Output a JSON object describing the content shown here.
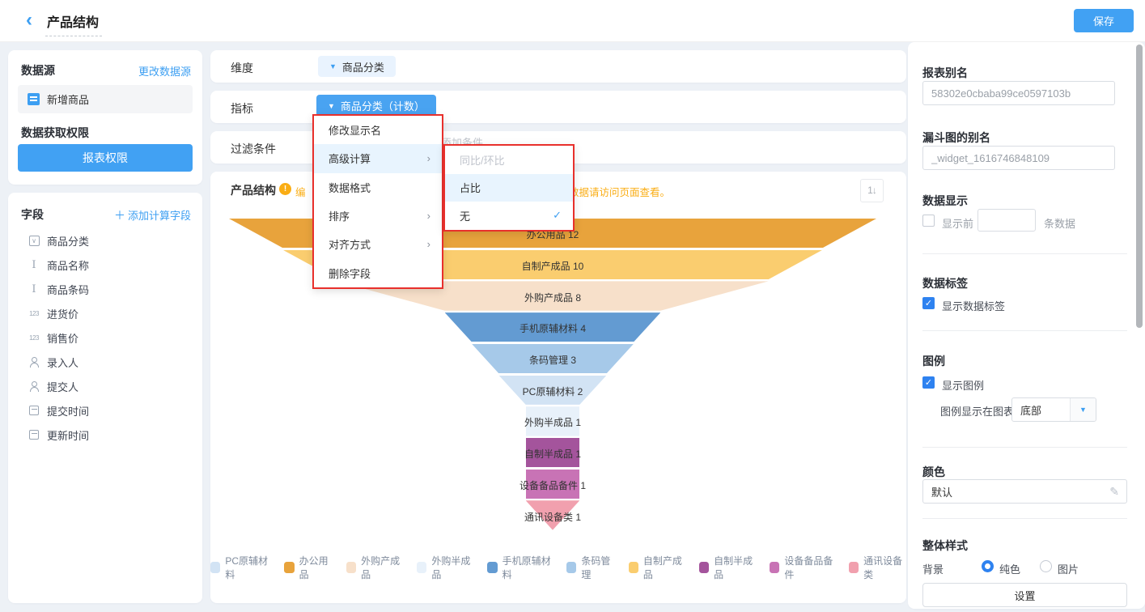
{
  "header": {
    "title": "产品结构",
    "save_label": "保存"
  },
  "left_panel": {
    "datasource": {
      "heading": "数据源",
      "change_link": "更改数据源",
      "item": "新增商品"
    },
    "permission": {
      "heading": "数据获取权限",
      "button": "报表权限"
    },
    "fields": {
      "heading": "字段",
      "add_link": "添加计算字段",
      "items": [
        {
          "icon": "select",
          "label": "商品分类"
        },
        {
          "icon": "text",
          "label": "商品名称"
        },
        {
          "icon": "text",
          "label": "商品条码"
        },
        {
          "icon": "number",
          "label": "进货价"
        },
        {
          "icon": "number",
          "label": "销售价"
        },
        {
          "icon": "person",
          "label": "录入人"
        },
        {
          "icon": "person",
          "label": "提交人"
        },
        {
          "icon": "date",
          "label": "提交时间"
        },
        {
          "icon": "date",
          "label": "更新时间"
        }
      ]
    }
  },
  "config_rows": {
    "dimension": {
      "label": "维度",
      "pill": "商品分类"
    },
    "metric": {
      "label": "指标",
      "pill": "商品分类（计数）"
    },
    "filter": {
      "label": "过滤条件",
      "placeholder_fragment": "添加条件"
    }
  },
  "context_menu": {
    "items": [
      {
        "label": "修改显示名",
        "arrow": false,
        "active": false
      },
      {
        "label": "高级计算",
        "arrow": true,
        "active": true
      },
      {
        "label": "数据格式",
        "arrow": false,
        "active": false
      },
      {
        "label": "排序",
        "arrow": true,
        "active": false
      },
      {
        "label": "对齐方式",
        "arrow": true,
        "active": false
      },
      {
        "label": "删除字段",
        "arrow": false,
        "active": false
      }
    ],
    "submenu": [
      {
        "label": "同比/环比",
        "disabled": true,
        "hover": false,
        "checked": false
      },
      {
        "label": "占比",
        "disabled": false,
        "hover": true,
        "checked": false
      },
      {
        "label": "无",
        "disabled": false,
        "hover": false,
        "checked": true
      }
    ]
  },
  "chart_card": {
    "title": "产品结构",
    "warning_fragment_left": "编",
    "warning_fragment_right": "数据请访问页面查看。",
    "sort_icon_glyph": "1↓"
  },
  "chart_data": {
    "type": "funnel",
    "title": "产品结构",
    "categories": [
      "办公用品",
      "自制产成品",
      "外购产成品",
      "手机原辅材料",
      "条码管理",
      "PC原辅材料",
      "外购半成品",
      "自制半成品",
      "设备备品备件",
      "通讯设备类"
    ],
    "values": [
      12,
      10,
      8,
      4,
      3,
      2,
      1,
      1,
      1,
      1
    ],
    "color_map": {
      "办公用品": "#E8A33C",
      "自制产成品": "#FACD6F",
      "外购产成品": "#F7E0CA",
      "手机原辅材料": "#639BD2",
      "条码管理": "#A6C9E9",
      "PC原辅材料": "#D2E3F4",
      "外购半成品": "#E8F1FA",
      "自制半成品": "#A4549C",
      "设备备品备件": "#C873B5",
      "通讯设备类": "#F1A0AE"
    },
    "legend_order": [
      "PC原辅材料",
      "办公用品",
      "外购产成品",
      "外购半成品",
      "手机原辅材料",
      "条码管理",
      "自制产成品",
      "自制半成品",
      "设备备品备件",
      "通讯设备类"
    ],
    "legend_position": "bottom"
  },
  "right_panel": {
    "report_alias": {
      "heading": "报表别名",
      "value": "58302e0cbaba99ce0597103b"
    },
    "widget_alias": {
      "heading": "漏斗图的别名",
      "value": "_widget_1616746848109"
    },
    "data_display": {
      "heading": "数据显示",
      "checkbox_label": "显示前",
      "suffix": "条数据",
      "checked": false,
      "input_value": ""
    },
    "data_label": {
      "heading": "数据标签",
      "checkbox_label": "显示数据标签",
      "checked": true
    },
    "legend": {
      "heading": "图例",
      "checkbox_label": "显示图例",
      "checked": true,
      "position_label": "图例显示在图表",
      "position_value": "底部"
    },
    "color": {
      "heading": "颜色",
      "value": "默认"
    },
    "overall_style": {
      "heading": "整体样式",
      "bg_label": "背景",
      "radio_solid": "纯色",
      "radio_image": "图片",
      "selected": "纯色",
      "settings_button": "设置"
    }
  },
  "accent_colors": {
    "primary_blue": "#41A1F3",
    "check_blue": "#2E82F0",
    "warning_orange": "#FAAD14",
    "annotation_red": "#E8302C"
  }
}
